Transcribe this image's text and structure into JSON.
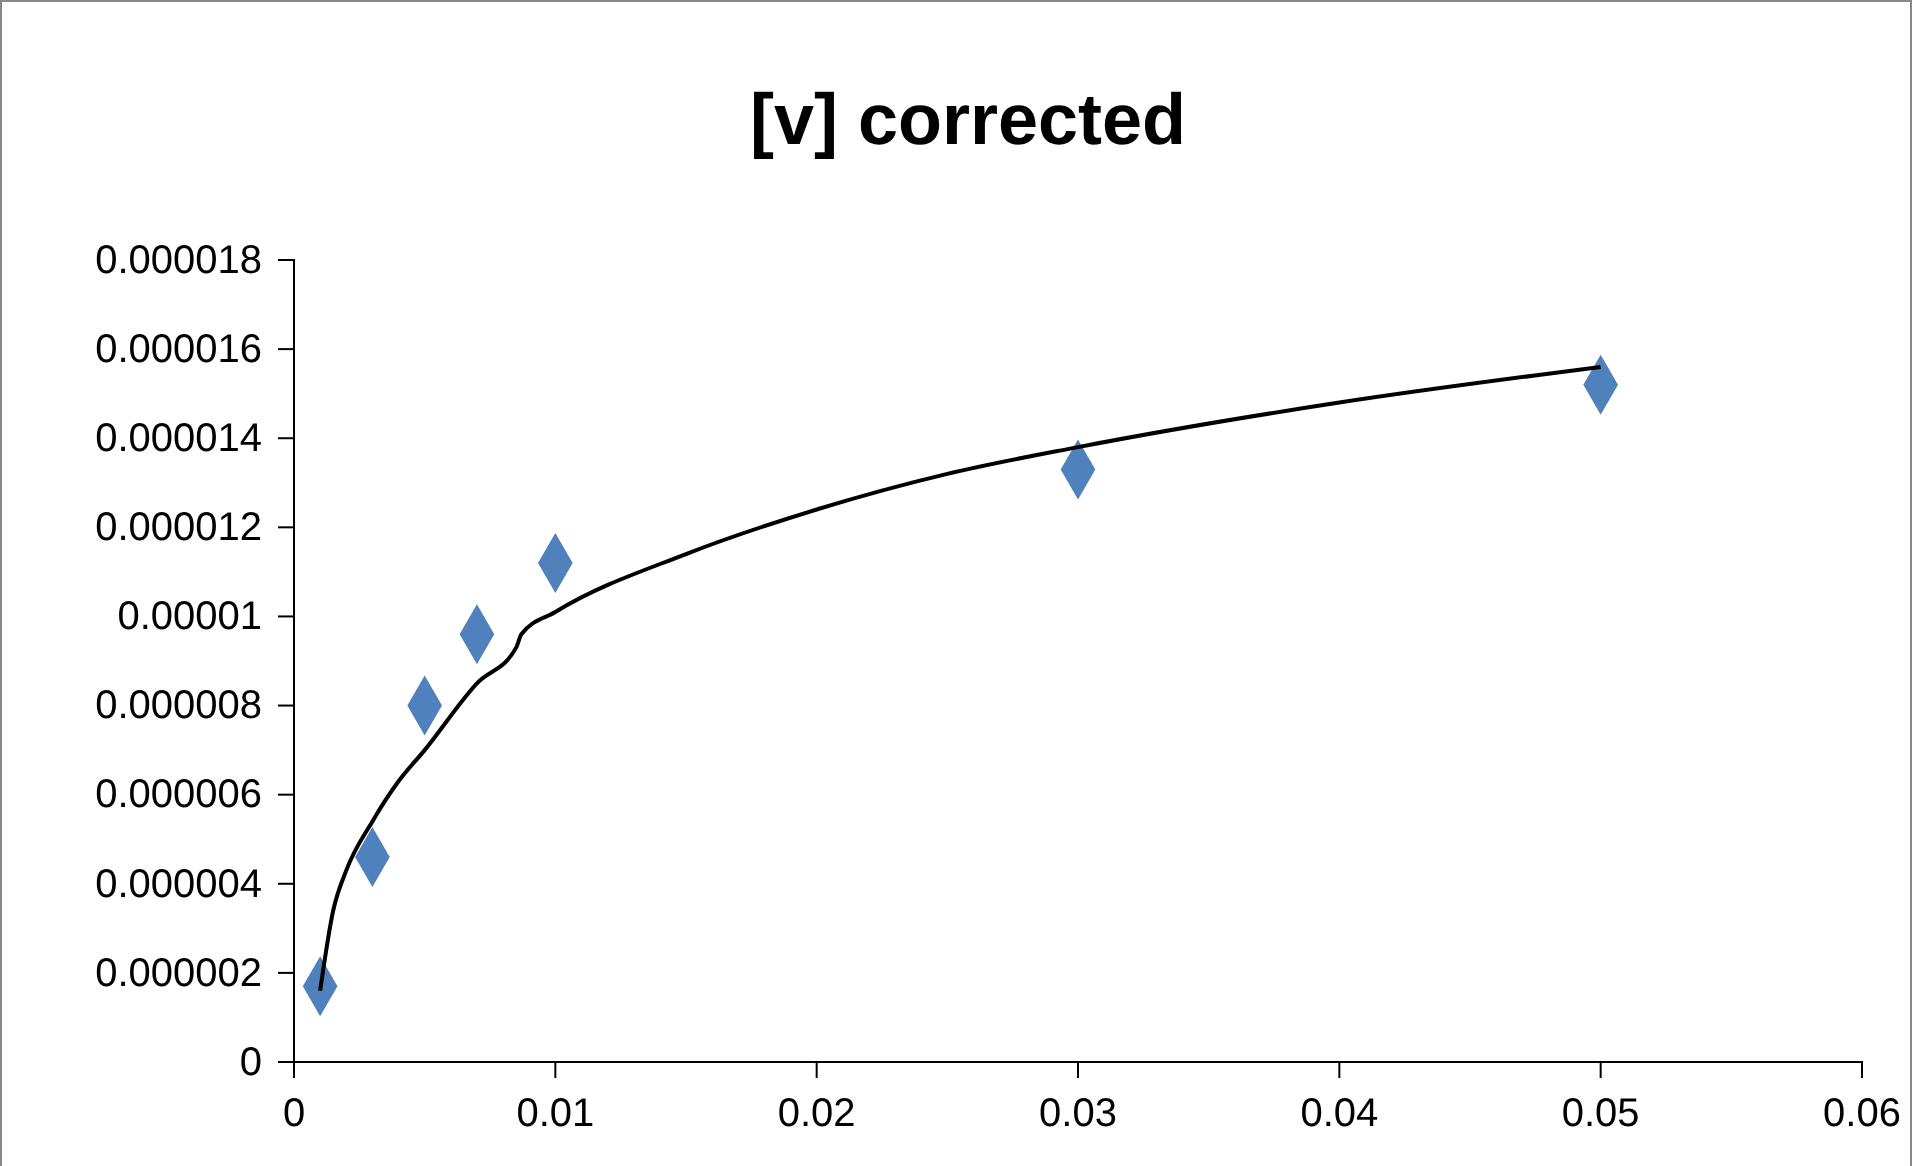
{
  "chart_data": {
    "type": "scatter",
    "title": "[v] corrected",
    "xlim": [
      0,
      0.06
    ],
    "xticks": [
      0,
      0.01,
      0.02,
      0.03,
      0.04,
      0.05,
      0.06
    ],
    "ylim": [
      0,
      1.8e-05
    ],
    "yticks": [
      0,
      {
        "value": 2e-06,
        "label": "0.000002"
      },
      {
        "value": 4e-06,
        "label": "0.000004"
      },
      {
        "value": 6e-06,
        "label": "0.000006"
      },
      {
        "value": 8e-06,
        "label": "0.000008"
      },
      {
        "value": 1e-05,
        "label": "0.00001"
      },
      {
        "value": 1.2e-05,
        "label": "0.000012"
      },
      {
        "value": 1.4e-05,
        "label": "0.000014"
      },
      {
        "value": 1.6e-05,
        "label": "0.000016"
      },
      {
        "value": 1.8e-05,
        "label": "0.000018"
      }
    ],
    "grid": false,
    "series": [
      {
        "color": "#4f81bd",
        "marker": "diamond",
        "x": [
          0.001,
          0.003,
          0.005,
          0.007,
          0.01,
          0.03,
          0.05
        ],
        "values": [
          1.7e-06,
          4.6e-06,
          8e-06,
          9.6e-06,
          1.12e-05,
          1.33e-05,
          1.52e-05
        ]
      },
      {
        "type": "line",
        "color": "#000000",
        "marker": "none",
        "line_style": "solid",
        "x": [
          0.001,
          0.0015,
          0.002,
          0.003,
          0.004,
          0.005,
          0.007,
          0.0085,
          0.0087,
          0.01,
          0.015,
          0.02,
          0.025,
          0.03,
          0.04,
          0.05
        ],
        "values": [
          1.6e-06,
          3.4e-06,
          4.3e-06,
          5.4e-06,
          6.3e-06,
          7e-06,
          8.5e-06,
          9.3e-06,
          9.6e-06,
          1.01e-05,
          1.14e-05,
          1.24e-05,
          1.32e-05,
          1.38e-05,
          1.48e-05,
          1.56e-05
        ]
      }
    ]
  }
}
